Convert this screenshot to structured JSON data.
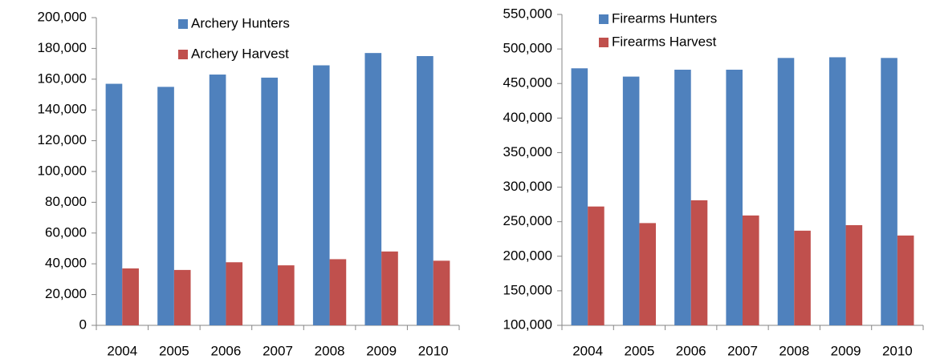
{
  "chart_data": [
    {
      "type": "bar",
      "categories": [
        "2004",
        "2005",
        "2006",
        "2007",
        "2008",
        "2009",
        "2010"
      ],
      "series": [
        {
          "name": "Archery Hunters",
          "color": "#4f81bd",
          "values": [
            157000,
            155000,
            163000,
            161000,
            169000,
            177000,
            175000
          ]
        },
        {
          "name": "Archery Harvest",
          "color": "#c0504d",
          "values": [
            37000,
            36000,
            41000,
            39000,
            43000,
            48000,
            42000
          ]
        }
      ],
      "ylim": [
        0,
        200000
      ],
      "yticks": [
        0,
        {
          "value": 20000,
          "label": "20,000"
        },
        {
          "value": 40000,
          "label": "40,000"
        },
        {
          "value": 60000,
          "label": "60,000"
        },
        {
          "value": 80000,
          "label": "80,000"
        },
        {
          "value": 100000,
          "label": "100,000"
        },
        {
          "value": 120000,
          "label": "120,000"
        },
        {
          "value": 140000,
          "label": "140,000"
        },
        {
          "value": 160000,
          "label": "160,000"
        },
        {
          "value": 180000,
          "label": "180,000"
        },
        {
          "value": 200000,
          "label": "200,000"
        }
      ],
      "legend": "top",
      "grid": false
    },
    {
      "type": "bar",
      "categories": [
        "2004",
        "2005",
        "2006",
        "2007",
        "2008",
        "2009",
        "2010"
      ],
      "series": [
        {
          "name": "Firearms Hunters",
          "color": "#4f81bd",
          "values": [
            472000,
            460000,
            470000,
            470000,
            487000,
            488000,
            487000
          ]
        },
        {
          "name": "Firearms Harvest",
          "color": "#c0504d",
          "values": [
            272000,
            248000,
            281000,
            259000,
            237000,
            245000,
            230000
          ]
        }
      ],
      "ylim": [
        100000,
        550000
      ],
      "yticks": [
        {
          "value": 100000,
          "label": "100,000"
        },
        {
          "value": 150000,
          "label": "150,000"
        },
        {
          "value": 200000,
          "label": "200,000"
        },
        {
          "value": 250000,
          "label": "250,000"
        },
        {
          "value": 300000,
          "label": "300,000"
        },
        {
          "value": 350000,
          "label": "350,000"
        },
        {
          "value": 400000,
          "label": "400,000"
        },
        {
          "value": 450000,
          "label": "450,000"
        },
        {
          "value": 500000,
          "label": "500,000"
        },
        {
          "value": 550000,
          "label": "550,000"
        }
      ],
      "legend": "top",
      "grid": false
    }
  ]
}
